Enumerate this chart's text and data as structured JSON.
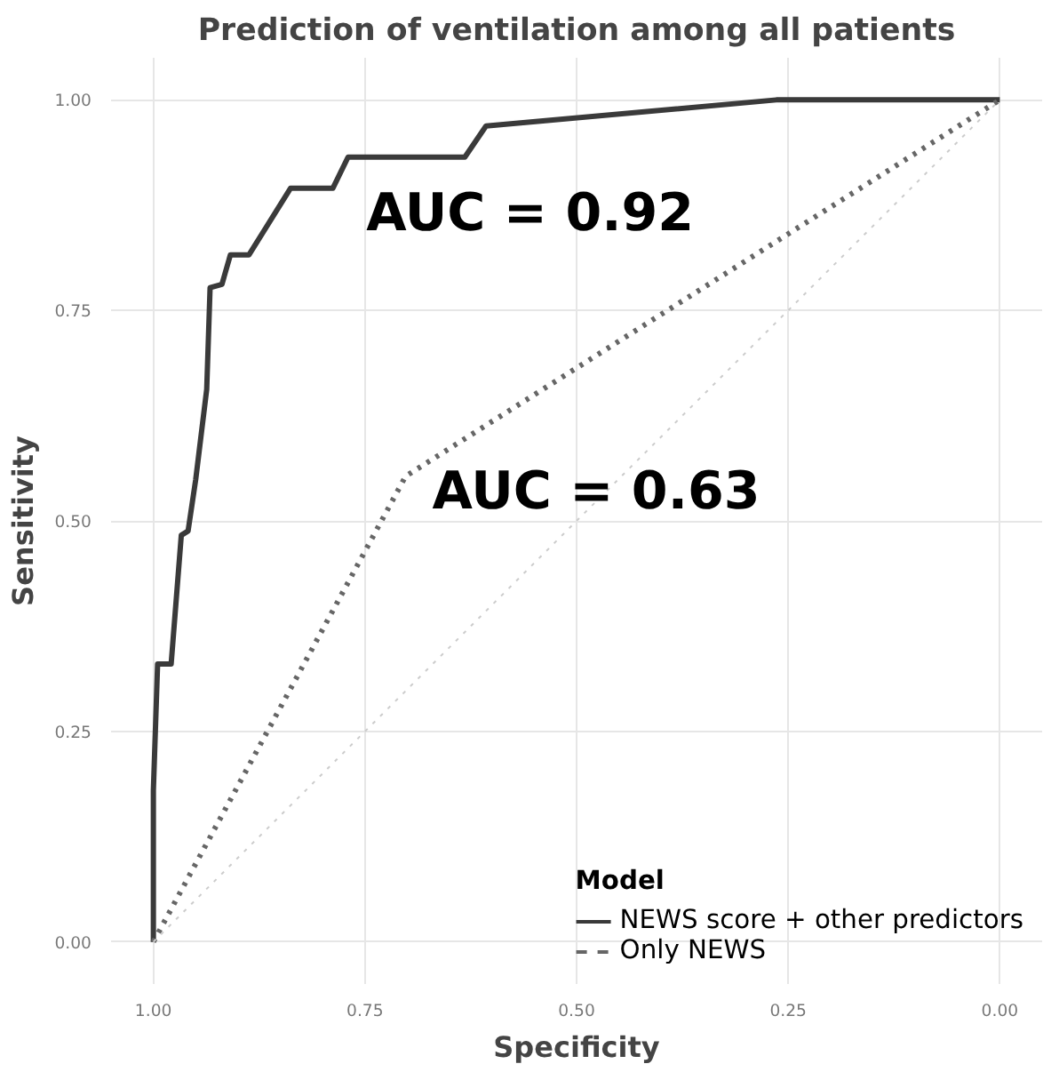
{
  "chart_data": {
    "type": "line",
    "title": "Prediction of ventilation among all patients",
    "xlabel": "Specificity",
    "ylabel": "Sensitivity",
    "legend_title": "Model",
    "xlim": [
      1.05,
      -0.05
    ],
    "ylim": [
      -0.05,
      1.05
    ],
    "xticks": [
      {
        "value": 1,
        "label": "1.00"
      },
      {
        "value": 0.75,
        "label": "0.75"
      },
      {
        "value": 0.5,
        "label": "0.50"
      },
      {
        "value": 0.25,
        "label": "0.25"
      },
      {
        "value": 0,
        "label": "0.00"
      }
    ],
    "yticks": [
      {
        "value": 0,
        "label": "0.00"
      },
      {
        "value": 0.25,
        "label": "0.25"
      },
      {
        "value": 0.5,
        "label": "0.50"
      },
      {
        "value": 0.75,
        "label": "0.75"
      },
      {
        "value": 1,
        "label": "1.00"
      }
    ],
    "grid": true,
    "legend": "bottom right",
    "series": [
      {
        "name": "NEWS score + other predictors",
        "color": "#3a3a3a",
        "line_style": "solid",
        "x": [
          1.0,
          1.0,
          0.995,
          0.979,
          0.967,
          0.959,
          0.95,
          0.937,
          0.933,
          0.919,
          0.909,
          0.887,
          0.838,
          0.788,
          0.77,
          0.632,
          0.607,
          0.264,
          0.0
        ],
        "values": [
          0.0,
          0.18,
          0.33,
          0.33,
          0.483,
          0.488,
          0.549,
          0.656,
          0.777,
          0.781,
          0.816,
          0.816,
          0.895,
          0.895,
          0.932,
          0.932,
          0.969,
          1.0,
          1.0
        ]
      },
      {
        "name": "Only NEWS",
        "color": "#666666",
        "line_style": "dotted",
        "x": [
          1.0,
          0.702,
          0.0
        ],
        "values": [
          0.0,
          0.553,
          1.0
        ]
      },
      {
        "color": "#cccccc",
        "line_style": "dotted",
        "x": [
          1.0,
          0.0
        ],
        "values": [
          0.0,
          1.0
        ]
      }
    ],
    "annotations": [
      "AUC = 0.92",
      "AUC = 0.63"
    ]
  }
}
